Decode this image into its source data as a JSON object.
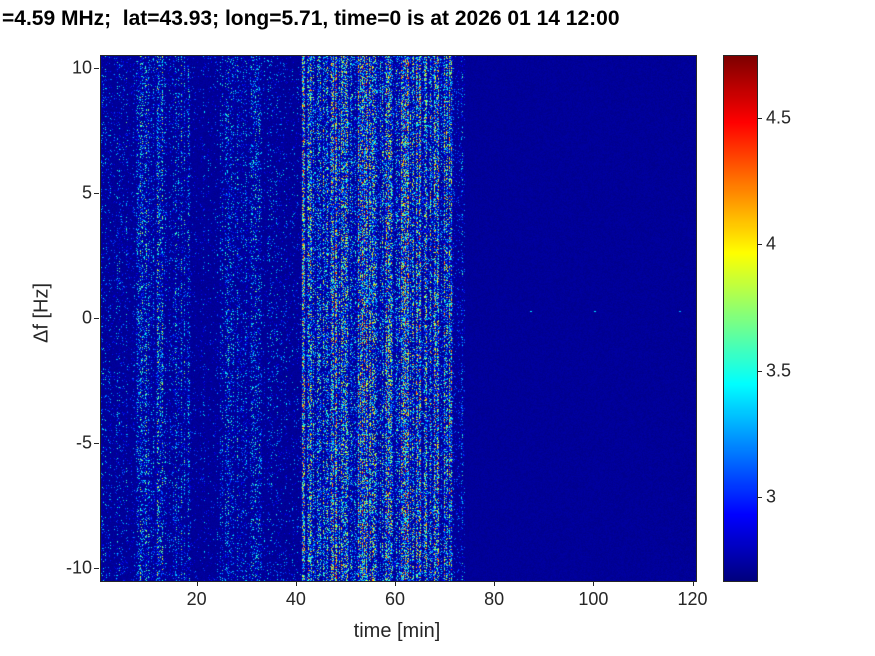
{
  "chart_data": {
    "type": "heatmap",
    "title": "=4.59 MHz;  lat=43.93; long=5.71, time=0 is at 2026 01 14 12:00",
    "xlabel": "time [min]",
    "ylabel": "Δf [Hz]",
    "xlim": [
      0.5,
      120.5
    ],
    "ylim": [
      -10.5,
      10.5
    ],
    "xticks": [
      20,
      40,
      60,
      80,
      100,
      120
    ],
    "yticks": [
      -10,
      -5,
      0,
      5,
      10
    ],
    "grid": false,
    "colormap": "jet",
    "clim": [
      2.67,
      4.75
    ],
    "colorbar_ticks": [
      3,
      3.5,
      4,
      4.5
    ],
    "background_value": 2.72,
    "bands": [
      {
        "t0": 0.5,
        "t1": 7.5,
        "density": 0.2,
        "amp": 0.85
      },
      {
        "t0": 7.5,
        "t1": 13.0,
        "density": 0.48,
        "amp": 1.15
      },
      {
        "t0": 13.0,
        "t1": 15.0,
        "density": 0.22,
        "amp": 0.85
      },
      {
        "t0": 15.0,
        "t1": 18.5,
        "density": 0.4,
        "amp": 1.0
      },
      {
        "t0": 18.5,
        "t1": 24.5,
        "density": 0.12,
        "amp": 0.7
      },
      {
        "t0": 24.5,
        "t1": 33.0,
        "density": 0.33,
        "amp": 0.95
      },
      {
        "t0": 33.0,
        "t1": 41.0,
        "density": 0.16,
        "amp": 0.8
      },
      {
        "t0": 41.0,
        "t1": 71.5,
        "density": 0.8,
        "amp": 1.6
      },
      {
        "t0": 71.5,
        "t1": 74.0,
        "density": 0.3,
        "amp": 0.9
      },
      {
        "t0": 74.0,
        "t1": 120.5,
        "density": 0.0,
        "amp": 0.0
      }
    ],
    "specks": [
      {
        "t": 27,
        "f": 0.3,
        "value": 3.4
      },
      {
        "t": 47,
        "f": 0.3,
        "value": 3.5
      },
      {
        "t": 87,
        "f": 0.3,
        "value": 3.4
      },
      {
        "t": 100,
        "f": 0.3,
        "value": 3.4
      },
      {
        "t": 117,
        "f": 0.3,
        "value": 3.3
      }
    ]
  }
}
